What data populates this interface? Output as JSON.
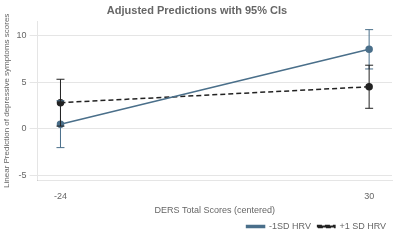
{
  "chart_data": {
    "type": "line",
    "title": "Adjusted Predictions with 95% CIs",
    "x_label": "DERS Total Scores (centered)",
    "y_label": "Linear Prediction of depressive symptoms scores",
    "x": [
      -24,
      30
    ],
    "xlim": [
      -28,
      34
    ],
    "xticks": [
      -24,
      30
    ],
    "ylim": [
      -5.5,
      11.5
    ],
    "yticks": [
      -5,
      0,
      5,
      10
    ],
    "grid": "y",
    "legend": "lower right",
    "series": [
      {
        "name": "-1SD HRV",
        "color": "#4a6f8a",
        "line_style": "solid",
        "marker": "o",
        "values": [
          0.5,
          8.5
        ],
        "ci_low": [
          -2.0,
          6.4
        ],
        "ci_high": [
          3.0,
          10.6
        ]
      },
      {
        "name": "+1 SD HRV",
        "color": "#222222",
        "line_style": "dashed",
        "marker": "o",
        "values": [
          2.8,
          4.5
        ],
        "ci_low": [
          0.3,
          2.2
        ],
        "ci_high": [
          5.3,
          6.8
        ]
      }
    ]
  }
}
